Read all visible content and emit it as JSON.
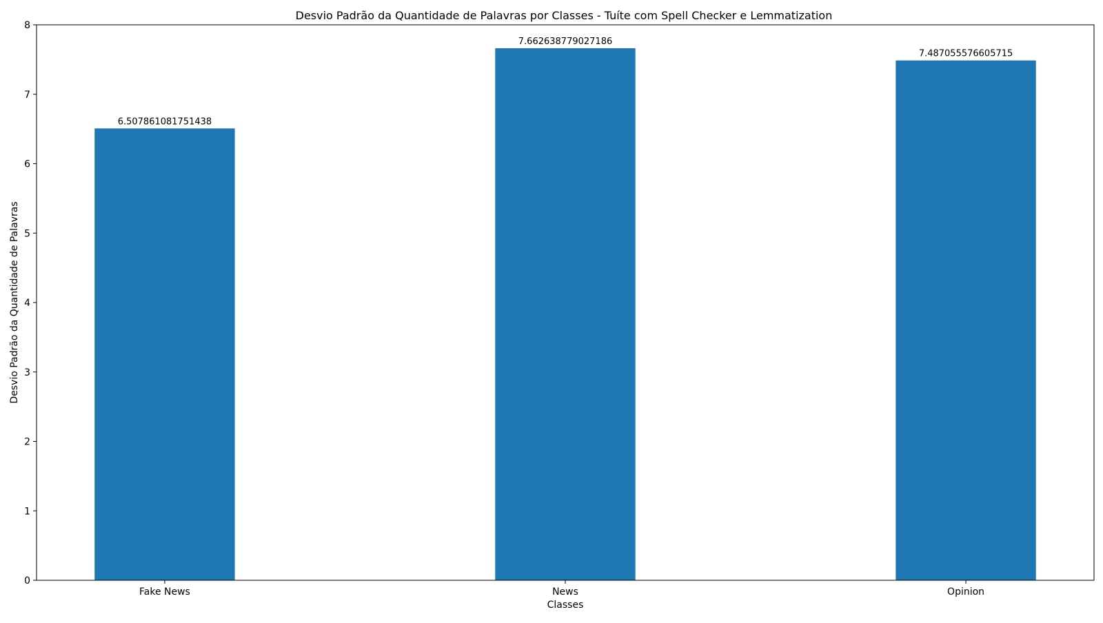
{
  "chart_data": {
    "type": "bar",
    "title": "Desvio Padrão da Quantidade de Palavras por Classes - Tuíte com Spell Checker e Lemmatization",
    "xlabel": "Classes",
    "ylabel": "Desvio Padrão da Quantidade de Palavras",
    "categories": [
      "Fake News",
      "News",
      "Opinion"
    ],
    "values": [
      6.507861081751438,
      7.662638779027186,
      7.487055576605715
    ],
    "value_labels": [
      "6.507861081751438",
      "7.662638779027186",
      "7.487055576605715"
    ],
    "ylim": [
      0,
      8
    ],
    "yticks": [
      0,
      1,
      2,
      3,
      4,
      5,
      6,
      7,
      8
    ],
    "grid": false,
    "legend": "none",
    "bar_color": "#1f77b4"
  }
}
